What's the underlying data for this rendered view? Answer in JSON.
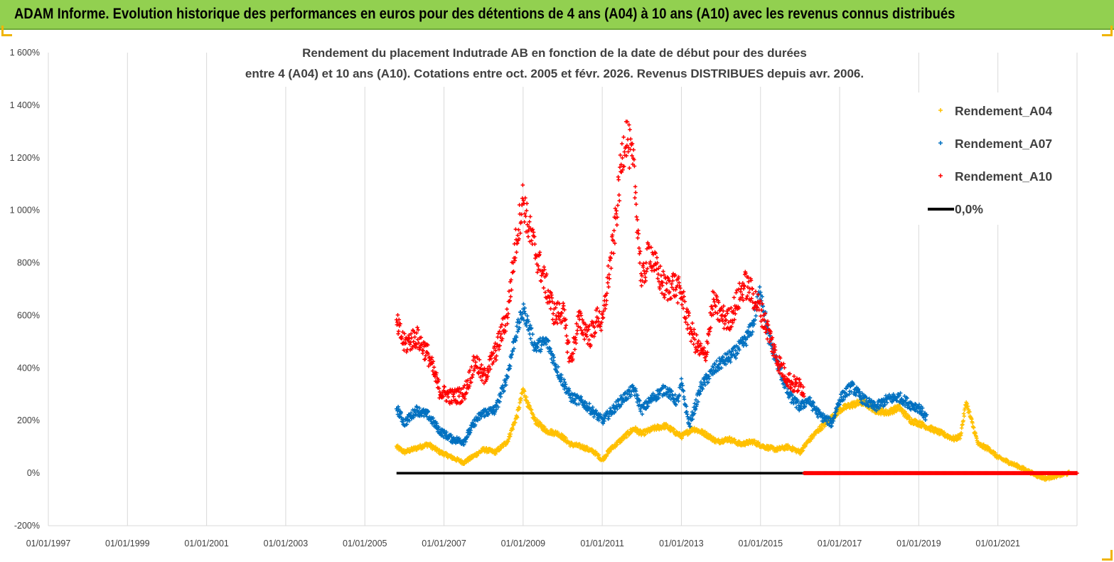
{
  "banner": {
    "text": "ADAM Informe. Evolution historique des performances en euros pour des détentions de 4 ans (A04) à 10 ans (A10) avec les revenus connus distribués"
  },
  "colors": {
    "banner_bg": "#92d050",
    "A04": "#ffc000",
    "A07": "#0070c0",
    "A10": "#ff0000",
    "zero": "#000000"
  },
  "chart_data": {
    "type": "scatter",
    "title_line1": "Rendement du placement Indutrade AB en fonction de la date de début pour des durées",
    "title_line2": "entre 4 (A04) et 10 ans (A10).  Cotations entre oct. 2005 et févr. 2026. Revenus DISTRIBUES depuis avr. 2006.",
    "x_unit": "date (year, decimal)",
    "xlim": [
      1997.0,
      2023.0
    ],
    "ylim": [
      -200,
      1600
    ],
    "y_ticks": [
      "-200%",
      "0%",
      "200%",
      "400%",
      "600%",
      "800%",
      "1 000%",
      "1 200%",
      "1 400%",
      "1 600%"
    ],
    "y_tick_values": [
      -200,
      0,
      200,
      400,
      600,
      800,
      1000,
      1200,
      1400,
      1600
    ],
    "x_ticks": [
      "01/01/1997",
      "01/01/1999",
      "01/01/2001",
      "01/01/2003",
      "01/01/2005",
      "01/01/2007",
      "01/01/2009",
      "01/01/2011",
      "01/01/2013",
      "01/01/2015",
      "01/01/2017",
      "01/01/2019",
      "01/01/2021"
    ],
    "x_tick_values": [
      1997,
      1999,
      2001,
      2003,
      2005,
      2007,
      2009,
      2011,
      2013,
      2015,
      2017,
      2019,
      2021
    ],
    "grid": "vertical lines only",
    "legend_position": "top-right",
    "series": [
      {
        "name": "Rendement_A04",
        "color": "#ffc000",
        "x": [
          2005.8,
          2006.0,
          2006.3,
          2006.6,
          2006.9,
          2007.2,
          2007.5,
          2007.8,
          2008.0,
          2008.3,
          2008.6,
          2008.85,
          2009.0,
          2009.15,
          2009.3,
          2009.6,
          2009.9,
          2010.2,
          2010.5,
          2010.8,
          2011.0,
          2011.2,
          2011.5,
          2011.8,
          2012.0,
          2012.3,
          2012.6,
          2012.9,
          2013.0,
          2013.3,
          2013.6,
          2013.9,
          2014.2,
          2014.5,
          2014.8,
          2015.1,
          2015.4,
          2015.7,
          2016.0,
          2016.2,
          2016.5,
          2016.8,
          2017.0,
          2017.3,
          2017.6,
          2017.9,
          2018.2,
          2018.5,
          2018.8,
          2019.0,
          2019.3,
          2019.6,
          2019.9,
          2020.05,
          2020.2,
          2020.5,
          2020.8,
          2021.0,
          2021.3,
          2021.6,
          2021.8,
          2022.0,
          2022.2,
          2022.5,
          2022.8
        ],
        "y": [
          100,
          80,
          95,
          110,
          80,
          60,
          40,
          70,
          90,
          80,
          120,
          220,
          320,
          250,
          200,
          160,
          150,
          110,
          100,
          80,
          50,
          90,
          130,
          170,
          150,
          170,
          180,
          150,
          140,
          170,
          150,
          120,
          130,
          110,
          120,
          100,
          90,
          100,
          80,
          120,
          170,
          210,
          240,
          260,
          270,
          240,
          230,
          250,
          200,
          190,
          170,
          150,
          130,
          140,
          270,
          110,
          90,
          60,
          40,
          20,
          5,
          -10,
          -20,
          -10,
          0
        ]
      },
      {
        "name": "Rendement_A07",
        "color": "#0070c0",
        "x": [
          2005.8,
          2006.0,
          2006.3,
          2006.6,
          2006.9,
          2007.2,
          2007.5,
          2007.8,
          2008.0,
          2008.3,
          2008.6,
          2008.8,
          2009.0,
          2009.1,
          2009.3,
          2009.6,
          2009.9,
          2010.2,
          2010.5,
          2010.8,
          2011.0,
          2011.2,
          2011.5,
          2011.8,
          2012.0,
          2012.3,
          2012.6,
          2012.9,
          2013.0,
          2013.2,
          2013.5,
          2013.8,
          2014.0,
          2014.3,
          2014.6,
          2014.8,
          2015.0,
          2015.2,
          2015.4,
          2015.7,
          2016.0,
          2016.2,
          2016.5,
          2016.8,
          2017.0,
          2017.3,
          2017.6,
          2017.9,
          2018.2,
          2018.5,
          2018.8,
          2019.0,
          2019.2
        ],
        "y": [
          250,
          190,
          240,
          220,
          160,
          130,
          120,
          200,
          230,
          240,
          370,
          520,
          620,
          580,
          480,
          500,
          380,
          290,
          270,
          230,
          200,
          230,
          280,
          320,
          240,
          290,
          320,
          270,
          340,
          180,
          330,
          390,
          420,
          450,
          500,
          560,
          700,
          520,
          430,
          300,
          250,
          280,
          220,
          190,
          280,
          330,
          280,
          250,
          280,
          290,
          260,
          250,
          210
        ]
      },
      {
        "name": "Rendement_A10",
        "color": "#ff0000",
        "x": [
          2005.8,
          2006.0,
          2006.3,
          2006.6,
          2006.9,
          2007.2,
          2007.5,
          2007.8,
          2008.0,
          2008.3,
          2008.6,
          2008.8,
          2009.0,
          2009.1,
          2009.3,
          2009.5,
          2009.8,
          2010.0,
          2010.2,
          2010.4,
          2010.7,
          2010.9,
          2011.0,
          2011.15,
          2011.3,
          2011.5,
          2011.6,
          2011.8,
          2012.0,
          2012.2,
          2012.4,
          2012.6,
          2012.8,
          2013.0,
          2013.2,
          2013.4,
          2013.6,
          2013.8,
          2014.0,
          2014.2,
          2014.4,
          2014.6,
          2014.8,
          2015.0,
          2015.2,
          2015.4,
          2015.6,
          2015.8,
          2016.0,
          2016.1
        ],
        "y": [
          570,
          490,
          520,
          450,
          310,
          290,
          300,
          430,
          360,
          460,
          600,
          860,
          1050,
          960,
          850,
          750,
          600,
          620,
          420,
          580,
          520,
          600,
          560,
          740,
          900,
          1200,
          1300,
          1150,
          720,
          850,
          760,
          700,
          720,
          680,
          560,
          480,
          440,
          650,
          600,
          580,
          650,
          720,
          680,
          620,
          540,
          440,
          380,
          340,
          330,
          320
        ]
      },
      {
        "name": "0,0%",
        "color": "#000000",
        "kind": "line",
        "x": [
          2005.8,
          2016.1
        ],
        "y": [
          0,
          0
        ]
      }
    ],
    "zero_overlay": {
      "color": "#ff0000",
      "x_range": [
        2016.1,
        2023.0
      ],
      "y": 0
    }
  }
}
